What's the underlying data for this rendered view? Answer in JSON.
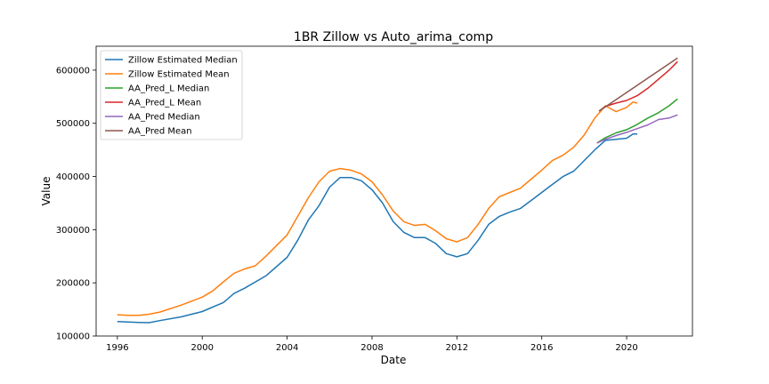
{
  "chart_data": {
    "type": "line",
    "title": "1BR Zillow vs Auto_arima_comp",
    "xlabel": "Date",
    "ylabel": "Value",
    "xlim": [
      1995.0,
      2023.1
    ],
    "ylim": [
      100000,
      645000
    ],
    "xticks": [
      {
        "value": 1996,
        "label": "1996"
      },
      {
        "value": 2000,
        "label": "2000"
      },
      {
        "value": 2004,
        "label": "2004"
      },
      {
        "value": 2008,
        "label": "2008"
      },
      {
        "value": 2012,
        "label": "2012"
      },
      {
        "value": 2016,
        "label": "2016"
      },
      {
        "value": 2020,
        "label": "2020"
      }
    ],
    "yticks": [
      {
        "value": 100000,
        "label": "100000"
      },
      {
        "value": 200000,
        "label": "200000"
      },
      {
        "value": 300000,
        "label": "300000"
      },
      {
        "value": 400000,
        "label": "400000"
      },
      {
        "value": 500000,
        "label": "500000"
      },
      {
        "value": 600000,
        "label": "600000"
      }
    ],
    "grid": false,
    "legend_position": "top-left",
    "series": [
      {
        "name": "Zillow Estimated Median",
        "color": "#1f77b4",
        "points": [
          [
            1996.0,
            127000
          ],
          [
            1997.0,
            125500
          ],
          [
            1997.5,
            125000
          ],
          [
            1998.0,
            129000
          ],
          [
            1999.0,
            136000
          ],
          [
            2000.0,
            146000
          ],
          [
            2001.0,
            163000
          ],
          [
            2001.5,
            180000
          ],
          [
            2002.0,
            190000
          ],
          [
            2003.0,
            213000
          ],
          [
            2004.0,
            248000
          ],
          [
            2004.5,
            280000
          ],
          [
            2005.0,
            318000
          ],
          [
            2005.5,
            345000
          ],
          [
            2006.0,
            380000
          ],
          [
            2006.5,
            398000
          ],
          [
            2007.0,
            398000
          ],
          [
            2007.5,
            392000
          ],
          [
            2008.0,
            375000
          ],
          [
            2008.5,
            350000
          ],
          [
            2009.0,
            315000
          ],
          [
            2009.5,
            295000
          ],
          [
            2010.0,
            285000
          ],
          [
            2010.5,
            285000
          ],
          [
            2011.0,
            274000
          ],
          [
            2011.5,
            255000
          ],
          [
            2012.0,
            249000
          ],
          [
            2012.5,
            255000
          ],
          [
            2013.0,
            280000
          ],
          [
            2013.5,
            310000
          ],
          [
            2014.0,
            325000
          ],
          [
            2014.5,
            333000
          ],
          [
            2015.0,
            340000
          ],
          [
            2015.5,
            355000
          ],
          [
            2016.0,
            370000
          ],
          [
            2016.5,
            385000
          ],
          [
            2017.0,
            400000
          ],
          [
            2017.5,
            410000
          ],
          [
            2018.0,
            430000
          ],
          [
            2018.5,
            450000
          ],
          [
            2019.0,
            468000
          ],
          [
            2019.5,
            470000
          ],
          [
            2020.0,
            472000
          ],
          [
            2020.3,
            480000
          ],
          [
            2020.5,
            480000
          ]
        ]
      },
      {
        "name": "Zillow Estimated Mean",
        "color": "#ff7f0e",
        "points": [
          [
            1996.0,
            140000
          ],
          [
            1996.5,
            139000
          ],
          [
            1997.0,
            139000
          ],
          [
            1997.5,
            141000
          ],
          [
            1998.0,
            145000
          ],
          [
            1999.0,
            158000
          ],
          [
            2000.0,
            173000
          ],
          [
            2000.5,
            185000
          ],
          [
            2001.0,
            202000
          ],
          [
            2001.5,
            218000
          ],
          [
            2002.0,
            226000
          ],
          [
            2002.5,
            232000
          ],
          [
            2003.0,
            250000
          ],
          [
            2004.0,
            290000
          ],
          [
            2004.5,
            325000
          ],
          [
            2005.0,
            360000
          ],
          [
            2005.5,
            390000
          ],
          [
            2006.0,
            410000
          ],
          [
            2006.5,
            415000
          ],
          [
            2007.0,
            412000
          ],
          [
            2007.5,
            405000
          ],
          [
            2008.0,
            390000
          ],
          [
            2008.5,
            365000
          ],
          [
            2009.0,
            335000
          ],
          [
            2009.5,
            315000
          ],
          [
            2010.0,
            308000
          ],
          [
            2010.5,
            310000
          ],
          [
            2011.0,
            298000
          ],
          [
            2011.5,
            283000
          ],
          [
            2012.0,
            277000
          ],
          [
            2012.5,
            285000
          ],
          [
            2013.0,
            310000
          ],
          [
            2013.5,
            340000
          ],
          [
            2014.0,
            362000
          ],
          [
            2014.5,
            370000
          ],
          [
            2015.0,
            378000
          ],
          [
            2015.5,
            395000
          ],
          [
            2016.0,
            412000
          ],
          [
            2016.5,
            430000
          ],
          [
            2017.0,
            440000
          ],
          [
            2017.5,
            455000
          ],
          [
            2018.0,
            478000
          ],
          [
            2018.5,
            510000
          ],
          [
            2019.0,
            533000
          ],
          [
            2019.5,
            522000
          ],
          [
            2020.0,
            530000
          ],
          [
            2020.3,
            540000
          ],
          [
            2020.5,
            538000
          ]
        ]
      },
      {
        "name": "AA_Pred_L Median",
        "color": "#2ca02c",
        "points": [
          [
            2018.6,
            463000
          ],
          [
            2019.0,
            473000
          ],
          [
            2019.5,
            482000
          ],
          [
            2020.0,
            488000
          ],
          [
            2020.5,
            498000
          ],
          [
            2021.0,
            510000
          ],
          [
            2021.5,
            520000
          ],
          [
            2022.0,
            533000
          ],
          [
            2022.4,
            546000
          ]
        ]
      },
      {
        "name": "AA_Pred_L Mean",
        "color": "#d62728",
        "points": [
          [
            2018.7,
            523000
          ],
          [
            2019.0,
            532000
          ],
          [
            2019.5,
            538000
          ],
          [
            2020.0,
            543000
          ],
          [
            2020.5,
            552000
          ],
          [
            2021.0,
            566000
          ],
          [
            2021.5,
            583000
          ],
          [
            2022.0,
            600000
          ],
          [
            2022.4,
            616000
          ]
        ]
      },
      {
        "name": "AA_Pred Median",
        "color": "#9467bd",
        "points": [
          [
            2018.6,
            463000
          ],
          [
            2019.0,
            470000
          ],
          [
            2019.5,
            477000
          ],
          [
            2020.0,
            483000
          ],
          [
            2020.5,
            490000
          ],
          [
            2021.0,
            497000
          ],
          [
            2021.5,
            507000
          ],
          [
            2022.0,
            510000
          ],
          [
            2022.4,
            516000
          ]
        ]
      },
      {
        "name": "AA_Pred Mean",
        "color": "#8c564b",
        "points": [
          [
            2018.7,
            523000
          ],
          [
            2022.4,
            623000
          ]
        ]
      }
    ]
  }
}
